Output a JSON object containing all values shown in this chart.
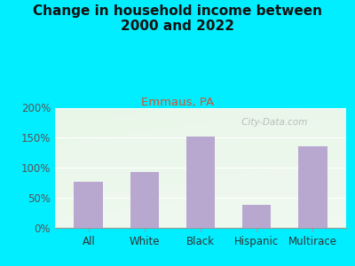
{
  "title": "Change in household income between\n2000 and 2022",
  "subtitle": "Emmaus, PA",
  "categories": [
    "All",
    "White",
    "Black",
    "Hispanic",
    "Multirace"
  ],
  "values": [
    77,
    92,
    152,
    38,
    136
  ],
  "bar_color": "#b8a8d0",
  "title_fontsize": 11,
  "subtitle_fontsize": 9.5,
  "subtitle_color": "#cc5533",
  "tick_label_color": "#333333",
  "ytick_label_color": "#555555",
  "ylim": [
    0,
    200
  ],
  "yticks": [
    0,
    50,
    100,
    150,
    200
  ],
  "ytick_labels": [
    "0%",
    "50%",
    "100%",
    "150%",
    "200%"
  ],
  "background_outer": "#00eeff",
  "background_inner_tl": "#d8ecd0",
  "background_inner_tr": "#f0f8f8",
  "background_inner_bl": "#c8e8c0",
  "background_inner_br": "#f8fff8",
  "watermark": " City-Data.com",
  "fig_width": 4.0,
  "fig_height": 3.0,
  "dpi": 100
}
